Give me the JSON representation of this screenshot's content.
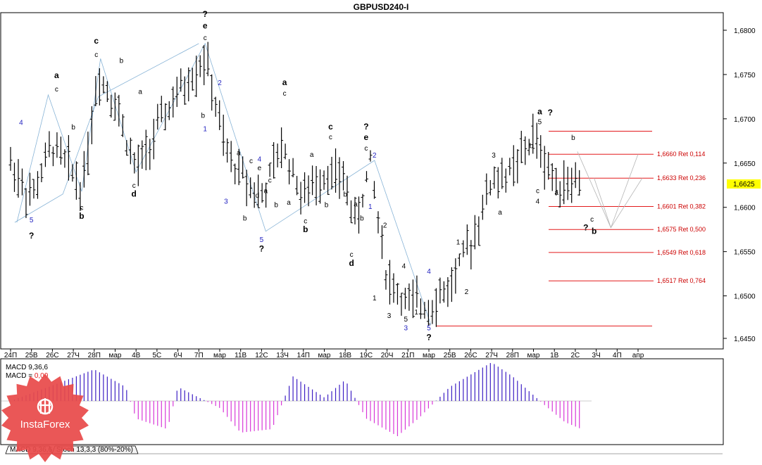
{
  "chart_data": {
    "type": "candlestick-ohlc",
    "title": "GBPUSD240-I",
    "symbol": "GBPUSD",
    "timeframe": "H4",
    "ylim": [
      1.645,
      1.6825
    ],
    "y_ticks": [
      "1,6800",
      "1,6750",
      "1,6700",
      "1,6650",
      "1,6600",
      "1,6550",
      "1,6500",
      "1,6450"
    ],
    "y_tick_values": [
      1.68,
      1.675,
      1.67,
      1.665,
      1.66,
      1.655,
      1.65,
      1.6452
    ],
    "x_ticks": [
      "24П",
      "25В",
      "26С",
      "27Ч",
      "28П",
      "мар",
      "4В",
      "5С",
      "6Ч",
      "7П",
      "мар",
      "11В",
      "12С",
      "13Ч",
      "14П",
      "мар",
      "18В",
      "19С",
      "20Ч",
      "21П",
      "мар",
      "25В",
      "26С",
      "27Ч",
      "28П",
      "мар",
      "1В",
      "2С",
      "3Ч",
      "4П",
      "апр"
    ],
    "current_price": {
      "label": "1,6625",
      "value": 1.6625
    },
    "retracements": [
      {
        "label": "1,6660 Ret 0,114",
        "value": 1.666
      },
      {
        "label": "1,6633 Ret 0,236",
        "value": 1.6633
      },
      {
        "label": "1,6601 Ret 0,382",
        "value": 1.6601
      },
      {
        "label": "1,6575 Ret 0,500",
        "value": 1.6575
      },
      {
        "label": "1,6549 Ret 0,618",
        "value": 1.6549
      },
      {
        "label": "1,6517 Ret 0,764",
        "value": 1.6517
      }
    ],
    "hlines": [
      1.6686,
      1.6466
    ],
    "wave_labels": [
      {
        "t": "4",
        "i": 0.5,
        "p": 1.6693,
        "c": "blue"
      },
      {
        "t": "5",
        "i": 1,
        "p": 1.6583,
        "c": "blue"
      },
      {
        "t": "?",
        "i": 1,
        "p": 1.6565,
        "c": "black",
        "b": true
      },
      {
        "t": "a",
        "i": 2.2,
        "p": 1.6746,
        "c": "black",
        "b": true
      },
      {
        "t": "c",
        "i": 2.2,
        "p": 1.6731,
        "c": "black"
      },
      {
        "t": "b",
        "i": 3.0,
        "p": 1.6688,
        "c": "black"
      },
      {
        "t": "c",
        "i": 3.4,
        "p": 1.6597,
        "c": "black"
      },
      {
        "t": "b",
        "i": 3.4,
        "p": 1.6587,
        "c": "black",
        "b": true
      },
      {
        "t": "c",
        "i": 4.1,
        "p": 1.6785,
        "c": "black",
        "b": true
      },
      {
        "t": "c",
        "i": 4.1,
        "p": 1.677,
        "c": "black"
      },
      {
        "t": "b",
        "i": 5.3,
        "p": 1.6763,
        "c": "black"
      },
      {
        "t": "a",
        "i": 6.2,
        "p": 1.6728,
        "c": "black"
      },
      {
        "t": "c",
        "i": 5.9,
        "p": 1.6622,
        "c": "black"
      },
      {
        "t": "d",
        "i": 5.9,
        "p": 1.6612,
        "c": "black",
        "b": true
      },
      {
        "t": "?",
        "i": 9.3,
        "p": 1.6815,
        "c": "black",
        "b": true
      },
      {
        "t": "e",
        "i": 9.3,
        "p": 1.6802,
        "c": "black",
        "b": true
      },
      {
        "t": "c",
        "i": 9.3,
        "p": 1.6789,
        "c": "black"
      },
      {
        "t": "2",
        "i": 10,
        "p": 1.6738,
        "c": "blue"
      },
      {
        "t": "1",
        "i": 9.3,
        "p": 1.6686,
        "c": "blue"
      },
      {
        "t": "b",
        "i": 9.2,
        "p": 1.6701,
        "c": "black"
      },
      {
        "t": "a",
        "i": 10.9,
        "p": 1.6659,
        "c": "black"
      },
      {
        "t": "3",
        "i": 10.3,
        "p": 1.6604,
        "c": "blue"
      },
      {
        "t": "b",
        "i": 11.2,
        "p": 1.6585,
        "c": "black"
      },
      {
        "t": "4",
        "i": 11.9,
        "p": 1.6652,
        "c": "blue"
      },
      {
        "t": "e",
        "i": 11.9,
        "p": 1.6642,
        "c": "black"
      },
      {
        "t": "c",
        "i": 11.5,
        "p": 1.665,
        "c": "black"
      },
      {
        "t": "c",
        "i": 12.4,
        "p": 1.6628,
        "c": "black"
      },
      {
        "t": "a",
        "i": 12.2,
        "p": 1.6616,
        "c": "black"
      },
      {
        "t": "d",
        "i": 11.8,
        "p": 1.6611,
        "c": "black"
      },
      {
        "t": "b",
        "i": 12.7,
        "p": 1.66,
        "c": "black"
      },
      {
        "t": "5",
        "i": 12,
        "p": 1.6561,
        "c": "blue"
      },
      {
        "t": "?",
        "i": 12,
        "p": 1.655,
        "c": "black",
        "b": true
      },
      {
        "t": "a",
        "i": 13.1,
        "p": 1.6738,
        "c": "black",
        "b": true
      },
      {
        "t": "c",
        "i": 13.1,
        "p": 1.6726,
        "c": "black"
      },
      {
        "t": "a",
        "i": 13.3,
        "p": 1.6603,
        "c": "black"
      },
      {
        "t": "c",
        "i": 14.1,
        "p": 1.6582,
        "c": "black"
      },
      {
        "t": "b",
        "i": 14.1,
        "p": 1.6572,
        "c": "black",
        "b": true
      },
      {
        "t": "a",
        "i": 14.4,
        "p": 1.6657,
        "c": "black"
      },
      {
        "t": "c",
        "i": 15.3,
        "p": 1.6688,
        "c": "black",
        "b": true
      },
      {
        "t": "c",
        "i": 15.3,
        "p": 1.6677,
        "c": "black"
      },
      {
        "t": "b",
        "i": 15.1,
        "p": 1.66,
        "c": "black"
      },
      {
        "t": "b",
        "i": 16,
        "p": 1.6612,
        "c": "black"
      },
      {
        "t": "?",
        "i": 17.0,
        "p": 1.6688,
        "c": "black",
        "b": true
      },
      {
        "t": "e",
        "i": 17.0,
        "p": 1.6676,
        "c": "black",
        "b": true
      },
      {
        "t": "c",
        "i": 17.0,
        "p": 1.6664,
        "c": "black"
      },
      {
        "t": "2",
        "i": 17.4,
        "p": 1.6656,
        "c": "blue"
      },
      {
        "t": "1",
        "i": 17.2,
        "p": 1.6598,
        "c": "blue"
      },
      {
        "t": "a",
        "i": 16.5,
        "p": 1.6601,
        "c": "black"
      },
      {
        "t": "b",
        "i": 16.8,
        "p": 1.6585,
        "c": "black"
      },
      {
        "t": "c",
        "i": 16.3,
        "p": 1.6544,
        "c": "black"
      },
      {
        "t": "d",
        "i": 16.3,
        "p": 1.6534,
        "c": "black",
        "b": true
      },
      {
        "t": "2",
        "i": 17.9,
        "p": 1.6577,
        "c": "black"
      },
      {
        "t": "1",
        "i": 17.4,
        "p": 1.6495,
        "c": "black"
      },
      {
        "t": "3",
        "i": 18.1,
        "p": 1.6475,
        "c": "black"
      },
      {
        "t": "4",
        "i": 18.8,
        "p": 1.6531,
        "c": "black"
      },
      {
        "t": "5",
        "i": 18.9,
        "p": 1.6471,
        "c": "black"
      },
      {
        "t": "3",
        "i": 18.9,
        "p": 1.6461,
        "c": "blue"
      },
      {
        "t": "1",
        "i": 19.4,
        "p": 1.6479,
        "c": "black"
      },
      {
        "t": "4",
        "i": 20,
        "p": 1.6525,
        "c": "blue"
      },
      {
        "t": "5",
        "i": 20,
        "p": 1.6461,
        "c": "blue"
      },
      {
        "t": "?",
        "i": 20,
        "p": 1.645,
        "c": "black",
        "b": true
      },
      {
        "t": "2",
        "i": 21.8,
        "p": 1.6502,
        "c": "black"
      },
      {
        "t": "1",
        "i": 21.4,
        "p": 1.6558,
        "c": "black"
      },
      {
        "t": "3",
        "i": 23.1,
        "p": 1.6656,
        "c": "black"
      },
      {
        "t": "a",
        "i": 23.4,
        "p": 1.6592,
        "c": "black"
      },
      {
        "t": "5",
        "i": 25.3,
        "p": 1.6694,
        "c": "black"
      },
      {
        "t": "a",
        "i": 25.3,
        "p": 1.6705,
        "c": "black",
        "b": true
      },
      {
        "t": "?",
        "i": 25.8,
        "p": 1.6704,
        "c": "black",
        "b": true
      },
      {
        "t": "b",
        "i": 24.9,
        "p": 1.6667,
        "c": "black"
      },
      {
        "t": "c",
        "i": 25.2,
        "p": 1.6616,
        "c": "black"
      },
      {
        "t": "4",
        "i": 25.2,
        "p": 1.6604,
        "c": "black"
      },
      {
        "t": "b",
        "i": 26.9,
        "p": 1.6676,
        "c": "black"
      },
      {
        "t": "a",
        "i": 26.1,
        "p": 1.6614,
        "c": "black"
      },
      {
        "t": "c",
        "i": 27.8,
        "p": 1.6584,
        "c": "black"
      },
      {
        "t": "?",
        "i": 27.5,
        "p": 1.6574,
        "c": "black",
        "b": true
      },
      {
        "t": "b",
        "i": 27.9,
        "p": 1.657,
        "c": "black",
        "b": true
      }
    ],
    "indicator": {
      "label1": "MACD 9,36,6",
      "label2": "MACD = ",
      "label2_value": "0,00",
      "tabs": [
        "MACD 9,36,6",
        "Stoch 13,3,3 (80%-20%)"
      ]
    },
    "watermark": "InstaForex"
  },
  "colors": {
    "retracement": "#e31a1c",
    "wave_blue": "#1f1fbf",
    "channel": "#87b3d6",
    "macd_pos": "#3d1fc4",
    "macd_neg": "#d838d8",
    "logo": "#e84a4a"
  }
}
